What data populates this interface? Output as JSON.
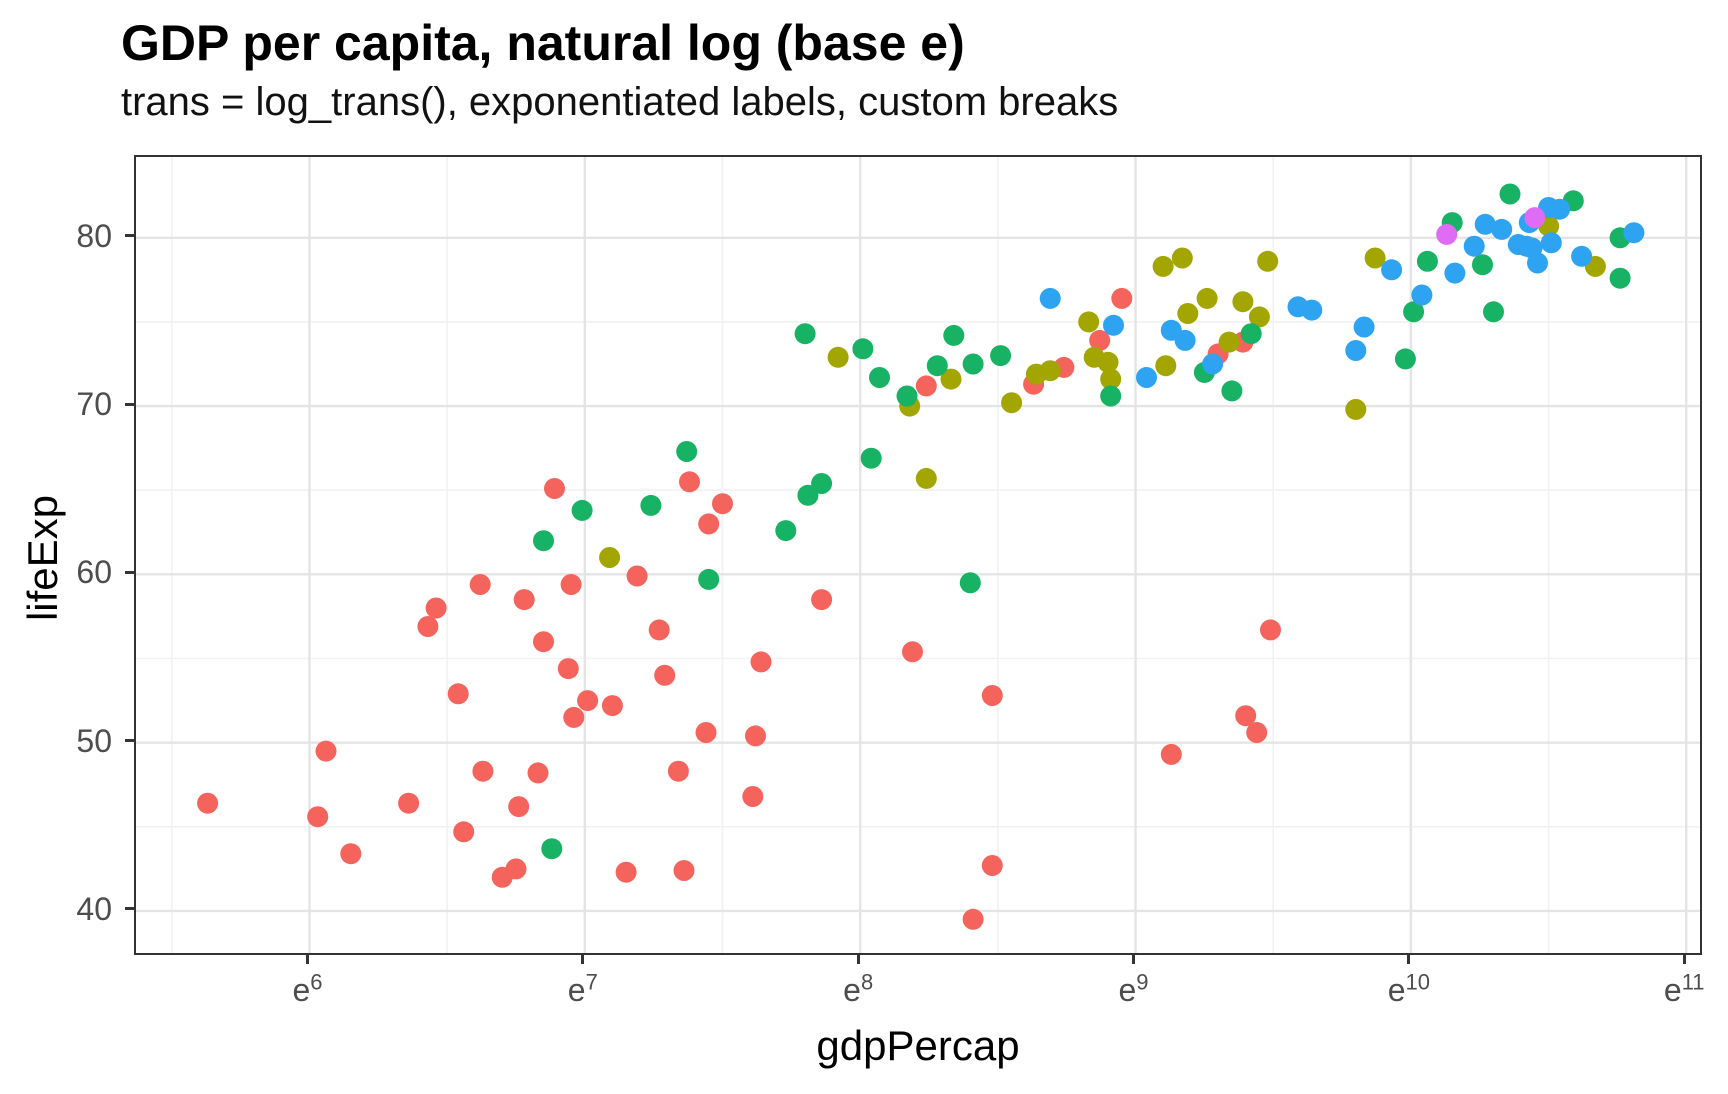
{
  "chart_data": {
    "type": "scatter",
    "title": "GDP per capita, natural log (base e)",
    "subtitle": "trans = log_trans(), exponentiated labels, custom breaks",
    "xlabel": "gdpPercap",
    "ylabel": "lifeExp",
    "x_scale": "natural-log, exponentiated labels",
    "x_tick_base": "e",
    "x_major_ticks_ln": [
      6,
      7,
      8,
      9,
      10,
      11
    ],
    "x_tick_exponents": [
      "6",
      "7",
      "8",
      "9",
      "10",
      "11"
    ],
    "x_minor_ticks_ln": [
      5.5,
      6.5,
      7.5,
      8.5,
      9.5,
      10.5
    ],
    "y_major_ticks": [
      40,
      50,
      60,
      70,
      80
    ],
    "y_minor_ticks": [
      45,
      55,
      65,
      75
    ],
    "x_range_ln": [
      5.37,
      11.05
    ],
    "y_range": [
      37.5,
      84.8
    ],
    "grid": "major+minor",
    "legend": "none",
    "point_radius_px": 10.5,
    "colors": {
      "red": "#F4645D",
      "olive": "#A3A500",
      "green": "#17B264",
      "blue": "#2EA3F2",
      "magenta": "#E06BF5"
    },
    "series": [
      {
        "name": "red",
        "color": "#F4645D",
        "points": [
          [
            5.63,
            46.4
          ],
          [
            6.03,
            45.6
          ],
          [
            6.06,
            49.5
          ],
          [
            6.15,
            43.4
          ],
          [
            6.36,
            46.4
          ],
          [
            6.43,
            56.9
          ],
          [
            6.46,
            58.0
          ],
          [
            6.54,
            52.9
          ],
          [
            6.56,
            44.7
          ],
          [
            6.62,
            59.4
          ],
          [
            6.63,
            48.3
          ],
          [
            6.7,
            42.0
          ],
          [
            6.75,
            42.5
          ],
          [
            6.76,
            46.2
          ],
          [
            6.78,
            58.5
          ],
          [
            6.83,
            48.2
          ],
          [
            6.85,
            56.0
          ],
          [
            6.89,
            65.1
          ],
          [
            6.94,
            54.4
          ],
          [
            6.95,
            59.4
          ],
          [
            6.96,
            51.5
          ],
          [
            7.01,
            52.5
          ],
          [
            7.1,
            52.2
          ],
          [
            7.15,
            42.3
          ],
          [
            7.19,
            59.9
          ],
          [
            7.27,
            56.7
          ],
          [
            7.29,
            54.0
          ],
          [
            7.34,
            48.3
          ],
          [
            7.36,
            42.4
          ],
          [
            7.38,
            65.5
          ],
          [
            7.44,
            50.6
          ],
          [
            7.45,
            63.0
          ],
          [
            7.5,
            64.2
          ],
          [
            7.61,
            46.8
          ],
          [
            7.62,
            50.4
          ],
          [
            7.64,
            54.8
          ],
          [
            7.86,
            58.5
          ],
          [
            8.19,
            55.4
          ],
          [
            8.24,
            71.2
          ],
          [
            8.41,
            39.5
          ],
          [
            8.48,
            42.7
          ],
          [
            8.48,
            52.8
          ],
          [
            8.63,
            71.3
          ],
          [
            8.74,
            72.3
          ],
          [
            8.87,
            73.9
          ],
          [
            8.95,
            76.4
          ],
          [
            9.13,
            49.3
          ],
          [
            9.3,
            73.1
          ],
          [
            9.39,
            73.8
          ],
          [
            9.4,
            51.6
          ],
          [
            9.44,
            50.6
          ],
          [
            9.49,
            56.7
          ]
        ]
      },
      {
        "name": "olive",
        "color": "#A3A500",
        "points": [
          [
            7.09,
            61.0
          ],
          [
            7.92,
            72.9
          ],
          [
            8.18,
            70.0
          ],
          [
            8.24,
            65.7
          ],
          [
            8.33,
            71.6
          ],
          [
            8.55,
            70.2
          ],
          [
            8.64,
            71.9
          ],
          [
            8.69,
            72.1
          ],
          [
            8.83,
            75.0
          ],
          [
            8.85,
            72.9
          ],
          [
            8.9,
            72.6
          ],
          [
            8.91,
            71.6
          ],
          [
            9.1,
            78.3
          ],
          [
            9.11,
            72.4
          ],
          [
            9.17,
            78.8
          ],
          [
            9.19,
            75.5
          ],
          [
            9.26,
            76.4
          ],
          [
            9.34,
            73.8
          ],
          [
            9.39,
            76.2
          ],
          [
            9.45,
            75.3
          ],
          [
            9.48,
            78.6
          ],
          [
            9.8,
            69.8
          ],
          [
            9.87,
            78.8
          ],
          [
            10.5,
            80.7
          ],
          [
            10.67,
            78.3
          ]
        ]
      },
      {
        "name": "green",
        "color": "#17B264",
        "points": [
          [
            6.85,
            62.0
          ],
          [
            6.88,
            43.7
          ],
          [
            6.99,
            63.8
          ],
          [
            7.24,
            64.1
          ],
          [
            7.37,
            67.3
          ],
          [
            7.45,
            59.7
          ],
          [
            7.73,
            62.6
          ],
          [
            7.8,
            74.3
          ],
          [
            7.81,
            64.7
          ],
          [
            7.86,
            65.4
          ],
          [
            8.01,
            73.4
          ],
          [
            8.04,
            66.9
          ],
          [
            8.07,
            71.7
          ],
          [
            8.17,
            70.6
          ],
          [
            8.28,
            72.4
          ],
          [
            8.34,
            74.2
          ],
          [
            8.4,
            59.5
          ],
          [
            8.41,
            72.5
          ],
          [
            8.51,
            73.0
          ],
          [
            8.91,
            70.6
          ],
          [
            9.25,
            72.0
          ],
          [
            9.35,
            70.9
          ],
          [
            9.42,
            74.3
          ],
          [
            9.98,
            72.8
          ],
          [
            10.01,
            75.6
          ],
          [
            10.06,
            78.6
          ],
          [
            10.15,
            80.9
          ],
          [
            10.26,
            78.4
          ],
          [
            10.3,
            75.6
          ],
          [
            10.36,
            82.6
          ],
          [
            10.59,
            82.2
          ],
          [
            10.76,
            80.0
          ],
          [
            10.76,
            77.6
          ]
        ]
      },
      {
        "name": "blue",
        "color": "#2EA3F2",
        "points": [
          [
            8.69,
            76.4
          ],
          [
            8.92,
            74.8
          ],
          [
            9.04,
            71.7
          ],
          [
            9.13,
            74.5
          ],
          [
            9.18,
            73.9
          ],
          [
            9.28,
            72.5
          ],
          [
            9.59,
            75.9
          ],
          [
            9.64,
            75.7
          ],
          [
            9.8,
            73.3
          ],
          [
            9.83,
            74.7
          ],
          [
            9.93,
            78.1
          ],
          [
            10.04,
            76.6
          ],
          [
            10.16,
            77.9
          ],
          [
            10.23,
            79.5
          ],
          [
            10.27,
            80.8
          ],
          [
            10.33,
            80.5
          ],
          [
            10.39,
            79.6
          ],
          [
            10.42,
            79.5
          ],
          [
            10.44,
            79.4
          ],
          [
            10.43,
            80.9
          ],
          [
            10.46,
            78.5
          ],
          [
            10.5,
            81.8
          ],
          [
            10.51,
            79.7
          ],
          [
            10.54,
            81.7
          ],
          [
            10.62,
            78.9
          ],
          [
            10.81,
            80.3
          ]
        ]
      },
      {
        "name": "magenta",
        "color": "#E06BF5",
        "points": [
          [
            10.13,
            80.2
          ],
          [
            10.45,
            81.2
          ]
        ]
      }
    ]
  }
}
